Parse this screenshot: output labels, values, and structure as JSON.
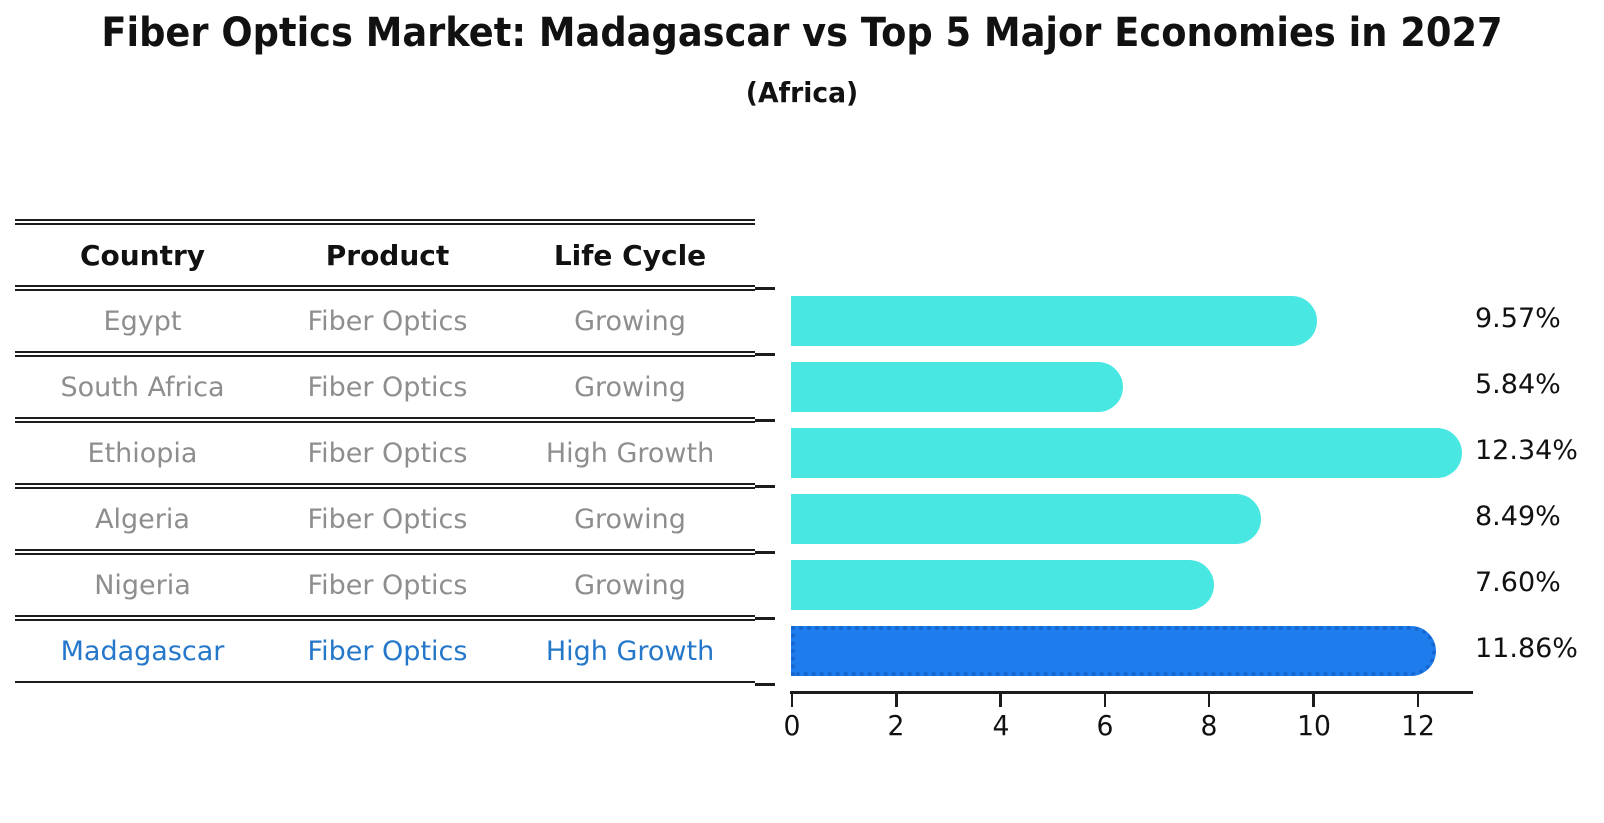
{
  "header": {
    "title": "Fiber Optics Market: Madagascar vs Top 5 Major Economies in 2027",
    "subtitle": "(Africa)"
  },
  "table": {
    "columns": [
      "Country",
      "Product",
      "Life Cycle"
    ],
    "rows": [
      {
        "country": "Egypt",
        "product": "Fiber Optics",
        "life_cycle": "Growing",
        "highlight": false
      },
      {
        "country": "South Africa",
        "product": "Fiber Optics",
        "life_cycle": "Growing",
        "highlight": false
      },
      {
        "country": "Ethiopia",
        "product": "Fiber Optics",
        "life_cycle": "High Growth",
        "highlight": false
      },
      {
        "country": "Algeria",
        "product": "Fiber Optics",
        "life_cycle": "Growing",
        "highlight": false
      },
      {
        "country": "Nigeria",
        "product": "Fiber Optics",
        "life_cycle": "Growing",
        "highlight": false
      },
      {
        "country": "Madagascar",
        "product": "Fiber Optics",
        "life_cycle": "High Growth",
        "highlight": true
      }
    ]
  },
  "chart_data": {
    "type": "bar",
    "orientation": "horizontal",
    "title": "Fiber Optics Market: Madagascar vs Top 5 Major Economies in 2027 (Africa)",
    "categories": [
      "Egypt",
      "South Africa",
      "Ethiopia",
      "Algeria",
      "Nigeria",
      "Madagascar"
    ],
    "values": [
      9.57,
      5.84,
      12.34,
      8.49,
      7.6,
      11.86
    ],
    "value_labels": [
      "9.57%",
      "5.84%",
      "12.34%",
      "8.49%",
      "7.60%",
      "11.86%"
    ],
    "xlabel": "",
    "ylabel": "",
    "xlim": [
      0,
      13
    ],
    "xticks": [
      0,
      2,
      4,
      6,
      8,
      10,
      12
    ],
    "grid": false,
    "legend_position": "none",
    "bar_color": "#49E7E2",
    "highlight_color": "#1E7CEC",
    "highlight_border_color": "#1566CE",
    "highlight_index": 5
  },
  "colors": {
    "title_text": "#111111",
    "row_text_muted": "#8E8E8E",
    "row_text_highlight": "#2577C9",
    "line": "#1C1C1C",
    "background": "#FFFFFF"
  }
}
